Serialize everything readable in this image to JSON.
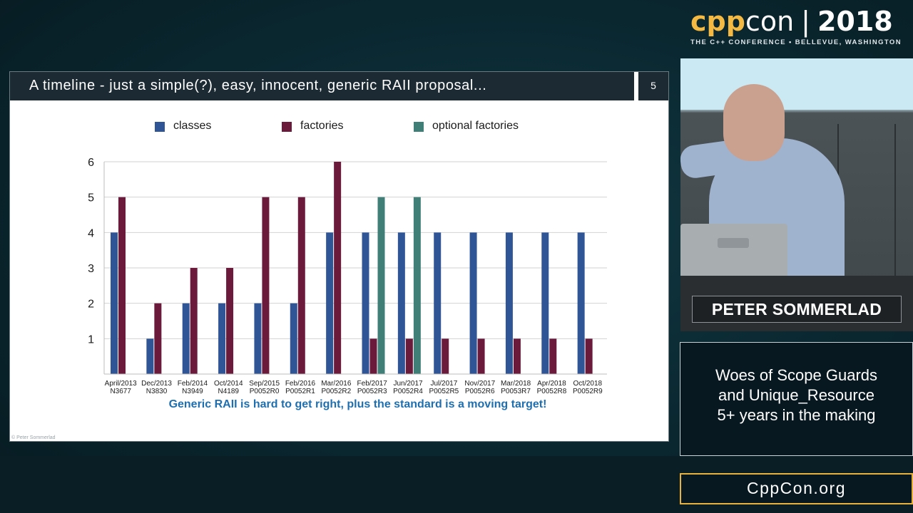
{
  "brand": {
    "cpp": "cpp",
    "con": "con",
    "separator": "|",
    "year": "2018",
    "subtitle": "THE C++ CONFERENCE • BELLEVUE, WASHINGTON"
  },
  "slide": {
    "title": "A timeline - just a simple(?), easy, innocent, generic RAII proposal...",
    "number": "5",
    "takeaway": "Generic RAII is hard to get right, plus the standard is a moving target!",
    "copyright": "© Peter Sommerlad"
  },
  "chart_data": {
    "type": "bar",
    "categories": [
      [
        "April/2013",
        "N3677"
      ],
      [
        "Dec/2013",
        "N3830"
      ],
      [
        "Feb/2014",
        "N3949"
      ],
      [
        "Oct/2014",
        "N4189"
      ],
      [
        "Sep/2015",
        "P0052R0"
      ],
      [
        "Feb/2016",
        "P0052R1"
      ],
      [
        "Mar/2016",
        "P0052R2"
      ],
      [
        "Feb/2017",
        "P0052R3"
      ],
      [
        "Jun/2017",
        "P0052R4"
      ],
      [
        "Jul/2017",
        "P0052R5"
      ],
      [
        "Nov/2017",
        "P0052R6"
      ],
      [
        "Mar/2018",
        "P0053R7"
      ],
      [
        "Apr/2018",
        "P0052R8"
      ],
      [
        "Oct/2018",
        "P0052R9"
      ]
    ],
    "series": [
      {
        "name": "classes",
        "color": "#2f5597",
        "values": [
          4,
          1,
          2,
          2,
          2,
          2,
          4,
          4,
          4,
          4,
          4,
          4,
          4,
          4
        ]
      },
      {
        "name": "factories",
        "color": "#6b1a3c",
        "values": [
          5,
          2,
          3,
          3,
          5,
          5,
          6,
          1,
          1,
          1,
          1,
          1,
          1,
          1
        ]
      },
      {
        "name": "optional factories",
        "color": "#3f7f78",
        "values": [
          0,
          0,
          0,
          0,
          0,
          0,
          0,
          5,
          5,
          0,
          0,
          0,
          0,
          0
        ]
      }
    ],
    "yticks": [
      1,
      2,
      3,
      4,
      5,
      6
    ],
    "ylim": [
      0,
      6
    ],
    "grid": true,
    "legend": "top"
  },
  "speaker": {
    "name": "PETER SOMMERLAD"
  },
  "talk": {
    "title_lines": [
      "Woes of Scope Guards",
      "and Unique_Resource",
      "5+ years in the making"
    ]
  },
  "site": {
    "url": "CppCon.org"
  }
}
